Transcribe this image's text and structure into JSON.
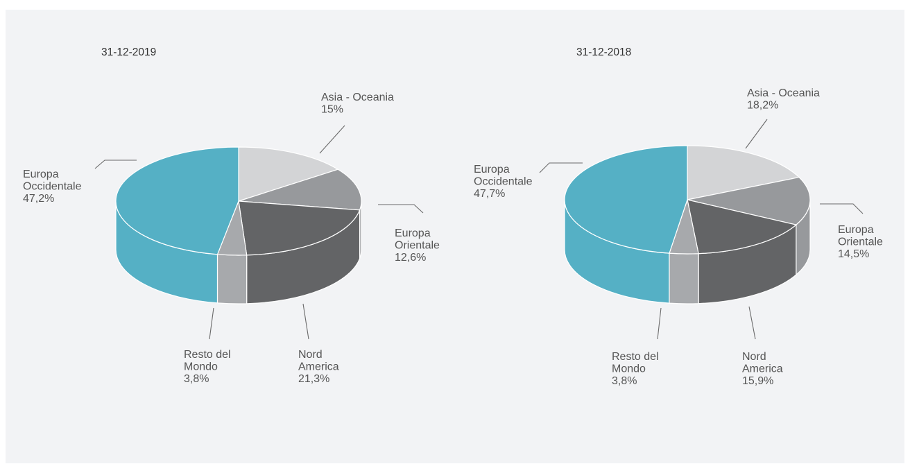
{
  "chart_data": [
    {
      "type": "pie",
      "title": "31-12-2019",
      "slices": [
        {
          "label": "Asia - Oceania",
          "value": 15,
          "display": "15%",
          "color": "#d3d4d6"
        },
        {
          "label": "Europa Orientale",
          "value": 12.6,
          "display": "12,6%",
          "color": "#97999c"
        },
        {
          "label": "Nord America",
          "value": 21.3,
          "display": "21,3%",
          "color": "#636466"
        },
        {
          "label": "Resto del Mondo",
          "value": 3.8,
          "display": "3,8%",
          "color": "#a7a9ac"
        },
        {
          "label": "Europa Occidentale",
          "value": 47.2,
          "display": "47,2%",
          "color": "#55b0c5"
        }
      ]
    },
    {
      "type": "pie",
      "title": "31-12-2018",
      "slices": [
        {
          "label": "Asia - Oceania",
          "value": 18.2,
          "display": "18,2%",
          "color": "#d3d4d6"
        },
        {
          "label": "Europa Orientale",
          "value": 14.5,
          "display": "14,5%",
          "color": "#97999c"
        },
        {
          "label": "Nord America",
          "value": 15.9,
          "display": "15,9%",
          "color": "#636466"
        },
        {
          "label": "Resto del Mondo",
          "value": 3.8,
          "display": "3,8%",
          "color": "#a7a9ac"
        },
        {
          "label": "Europa Occidentale",
          "value": 47.7,
          "display": "47,7%",
          "color": "#55b0c5"
        }
      ]
    }
  ]
}
